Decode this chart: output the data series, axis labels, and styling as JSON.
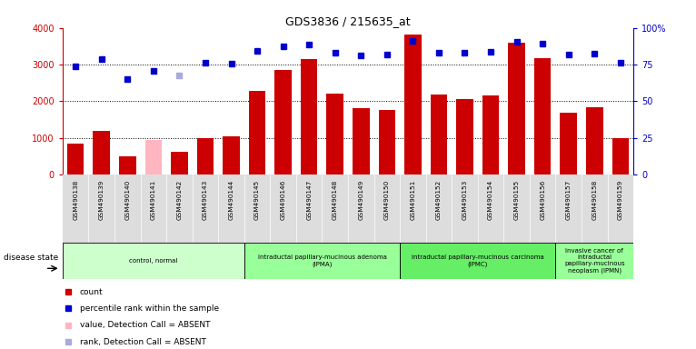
{
  "title": "GDS3836 / 215635_at",
  "samples": [
    "GSM490138",
    "GSM490139",
    "GSM490140",
    "GSM490141",
    "GSM490142",
    "GSM490143",
    "GSM490144",
    "GSM490145",
    "GSM490146",
    "GSM490147",
    "GSM490148",
    "GSM490149",
    "GSM490150",
    "GSM490151",
    "GSM490152",
    "GSM490153",
    "GSM490154",
    "GSM490155",
    "GSM490156",
    "GSM490157",
    "GSM490158",
    "GSM490159"
  ],
  "counts": [
    850,
    1200,
    500,
    950,
    620,
    1000,
    1050,
    2280,
    2850,
    3150,
    2200,
    1820,
    1750,
    3820,
    2180,
    2050,
    2150,
    3600,
    3180,
    1680,
    1830,
    1000
  ],
  "absent_count_indices": [
    3
  ],
  "absent_rank_indices": [
    4
  ],
  "ranks": [
    2950,
    3150,
    2600,
    2820,
    2700,
    3050,
    3030,
    3380,
    3500,
    3550,
    3320,
    3250,
    3270,
    3650,
    3330,
    3320,
    3360,
    3620,
    3580,
    3280,
    3300,
    3050
  ],
  "bar_color": "#cc0000",
  "absent_bar_color": "#ffb6c1",
  "rank_color": "#0000cc",
  "absent_rank_color": "#aaaadd",
  "disease_groups": [
    {
      "label": "control, normal",
      "start": 0,
      "end": 7,
      "color": "#ccffcc"
    },
    {
      "label": "intraductal papillary-mucinous adenoma\n(IPMA)",
      "start": 7,
      "end": 13,
      "color": "#99ff99"
    },
    {
      "label": "intraductal papillary-mucinous carcinoma\n(IPMC)",
      "start": 13,
      "end": 19,
      "color": "#66ee66"
    },
    {
      "label": "invasive cancer of\nintraductal\npapillary-mucinous\nneoplasm (IPMN)",
      "start": 19,
      "end": 22,
      "color": "#99ff99"
    }
  ],
  "ylim_left": [
    0,
    4000
  ],
  "yticks_left": [
    0,
    1000,
    2000,
    3000,
    4000
  ],
  "yticks_right": [
    0,
    25,
    50,
    75,
    100
  ],
  "ytick_labels_right": [
    "0",
    "25",
    "50",
    "75",
    "100%"
  ],
  "grid_lines": [
    1000,
    2000,
    3000
  ],
  "background_color": "#ffffff"
}
